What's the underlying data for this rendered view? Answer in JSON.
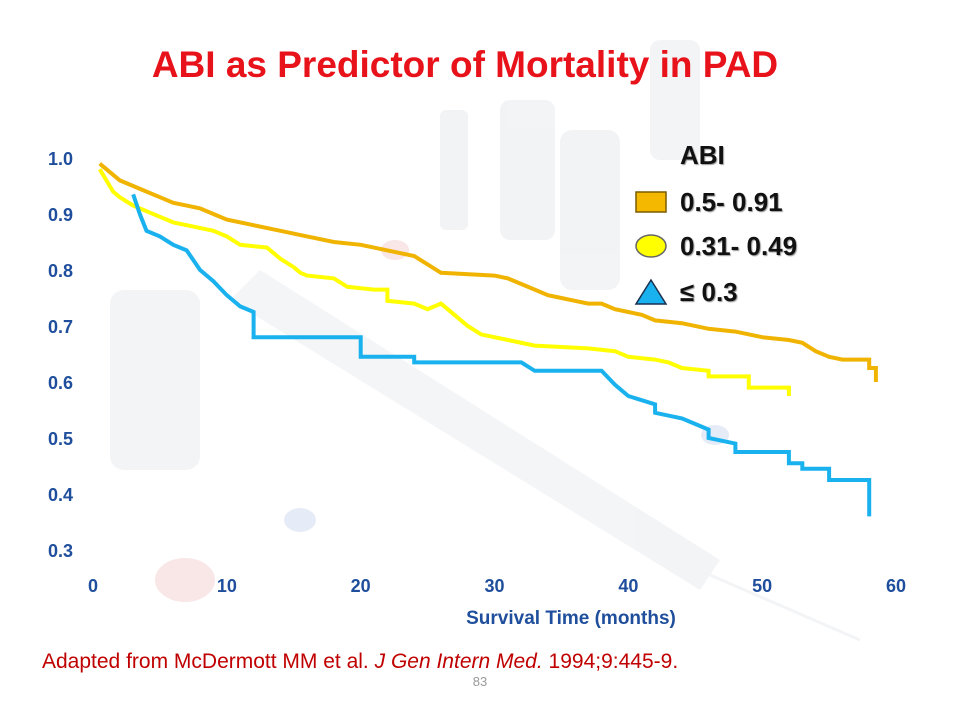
{
  "slide": {
    "title": "ABI as Predictor of Mortality in PAD",
    "citation": {
      "prefix": "Adapted from McDermott MM et al. ",
      "journal": "J Gen Intern Med.",
      "suffix": " 1994;9:445-9."
    },
    "page_number": "83"
  },
  "legend": {
    "title": "ABI",
    "items": [
      {
        "label": "0.5- 0.91",
        "marker": "square",
        "color": "#f5b800"
      },
      {
        "label": "0.31- 0.49",
        "marker": "circle",
        "color": "#ffff00"
      },
      {
        "label": "≤ 0.3",
        "marker": "triangle",
        "color": "#1ab2ee"
      }
    ]
  },
  "chart_data": {
    "type": "line",
    "title": "",
    "xlabel": "Survival Time (months)",
    "ylabel": "",
    "xlim": [
      0,
      60
    ],
    "ylim": [
      0.3,
      1.0
    ],
    "x_ticks": [
      0,
      10,
      20,
      30,
      40,
      50,
      60
    ],
    "y_ticks": [
      "1.0",
      "0.9",
      "0.8",
      "0.7",
      "0.6",
      "0.5",
      "0.4",
      "0.3"
    ],
    "grid": false,
    "legend_position": "top-right",
    "series": [
      {
        "name": "0.5- 0.91",
        "color": "#f0b400",
        "points": [
          [
            0.5,
            0.99
          ],
          [
            1,
            0.98
          ],
          [
            1.5,
            0.97
          ],
          [
            2,
            0.96
          ],
          [
            3,
            0.95
          ],
          [
            4,
            0.94
          ],
          [
            5,
            0.93
          ],
          [
            6,
            0.92
          ],
          [
            7,
            0.915
          ],
          [
            8,
            0.91
          ],
          [
            9,
            0.9
          ],
          [
            10,
            0.89
          ],
          [
            12,
            0.88
          ],
          [
            14,
            0.87
          ],
          [
            16,
            0.86
          ],
          [
            18,
            0.85
          ],
          [
            20,
            0.845
          ],
          [
            22,
            0.835
          ],
          [
            24,
            0.825
          ],
          [
            25,
            0.81
          ],
          [
            26,
            0.795
          ],
          [
            30,
            0.79
          ],
          [
            31,
            0.785
          ],
          [
            32,
            0.775
          ],
          [
            33,
            0.765
          ],
          [
            34,
            0.755
          ],
          [
            35,
            0.75
          ],
          [
            36,
            0.745
          ],
          [
            37,
            0.74
          ],
          [
            38,
            0.74
          ],
          [
            39,
            0.73
          ],
          [
            40,
            0.725
          ],
          [
            41,
            0.72
          ],
          [
            42,
            0.71
          ],
          [
            44,
            0.705
          ],
          [
            46,
            0.695
          ],
          [
            48,
            0.69
          ],
          [
            50,
            0.68
          ],
          [
            52,
            0.675
          ],
          [
            53,
            0.67
          ],
          [
            54,
            0.655
          ],
          [
            55,
            0.645
          ],
          [
            56,
            0.64
          ],
          [
            58,
            0.64
          ],
          [
            58,
            0.625
          ],
          [
            58.5,
            0.625
          ],
          [
            58.5,
            0.6
          ]
        ]
      },
      {
        "name": "0.31- 0.49",
        "color": "#ffff00",
        "points": [
          [
            0.5,
            0.98
          ],
          [
            1,
            0.96
          ],
          [
            1.5,
            0.94
          ],
          [
            2,
            0.93
          ],
          [
            3,
            0.915
          ],
          [
            4,
            0.905
          ],
          [
            5,
            0.895
          ],
          [
            6,
            0.885
          ],
          [
            7,
            0.88
          ],
          [
            9,
            0.87
          ],
          [
            10,
            0.86
          ],
          [
            11,
            0.845
          ],
          [
            13,
            0.84
          ],
          [
            14,
            0.82
          ],
          [
            15,
            0.805
          ],
          [
            15.5,
            0.795
          ],
          [
            16,
            0.79
          ],
          [
            18,
            0.785
          ],
          [
            19,
            0.77
          ],
          [
            21,
            0.765
          ],
          [
            22,
            0.765
          ],
          [
            22,
            0.745
          ],
          [
            24,
            0.74
          ],
          [
            25,
            0.73
          ],
          [
            26,
            0.74
          ],
          [
            27,
            0.72
          ],
          [
            28,
            0.7
          ],
          [
            29,
            0.685
          ],
          [
            31,
            0.675
          ],
          [
            33,
            0.665
          ],
          [
            37,
            0.66
          ],
          [
            39,
            0.655
          ],
          [
            40,
            0.645
          ],
          [
            42,
            0.64
          ],
          [
            43,
            0.635
          ],
          [
            44,
            0.625
          ],
          [
            46,
            0.62
          ],
          [
            46,
            0.61
          ],
          [
            49,
            0.61
          ],
          [
            49,
            0.59
          ],
          [
            52,
            0.59
          ],
          [
            52,
            0.575
          ]
        ]
      },
      {
        "name": "≤ 0.3",
        "color": "#1ab2ee",
        "points": [
          [
            3,
            0.935
          ],
          [
            3.5,
            0.9
          ],
          [
            4,
            0.87
          ],
          [
            5,
            0.86
          ],
          [
            6,
            0.845
          ],
          [
            7,
            0.835
          ],
          [
            8,
            0.8
          ],
          [
            9,
            0.78
          ],
          [
            10,
            0.755
          ],
          [
            11,
            0.735
          ],
          [
            12,
            0.725
          ],
          [
            12,
            0.68
          ],
          [
            20,
            0.68
          ],
          [
            20,
            0.645
          ],
          [
            24,
            0.645
          ],
          [
            24,
            0.635
          ],
          [
            32,
            0.635
          ],
          [
            33,
            0.62
          ],
          [
            38,
            0.62
          ],
          [
            39,
            0.595
          ],
          [
            40,
            0.575
          ],
          [
            42,
            0.56
          ],
          [
            42,
            0.545
          ],
          [
            44,
            0.535
          ],
          [
            45,
            0.525
          ],
          [
            46,
            0.515
          ],
          [
            46,
            0.5
          ],
          [
            48,
            0.49
          ],
          [
            48,
            0.475
          ],
          [
            52,
            0.475
          ],
          [
            52,
            0.455
          ],
          [
            53,
            0.455
          ],
          [
            53,
            0.445
          ],
          [
            55,
            0.445
          ],
          [
            55,
            0.425
          ],
          [
            58,
            0.425
          ],
          [
            58,
            0.36
          ]
        ]
      }
    ]
  }
}
